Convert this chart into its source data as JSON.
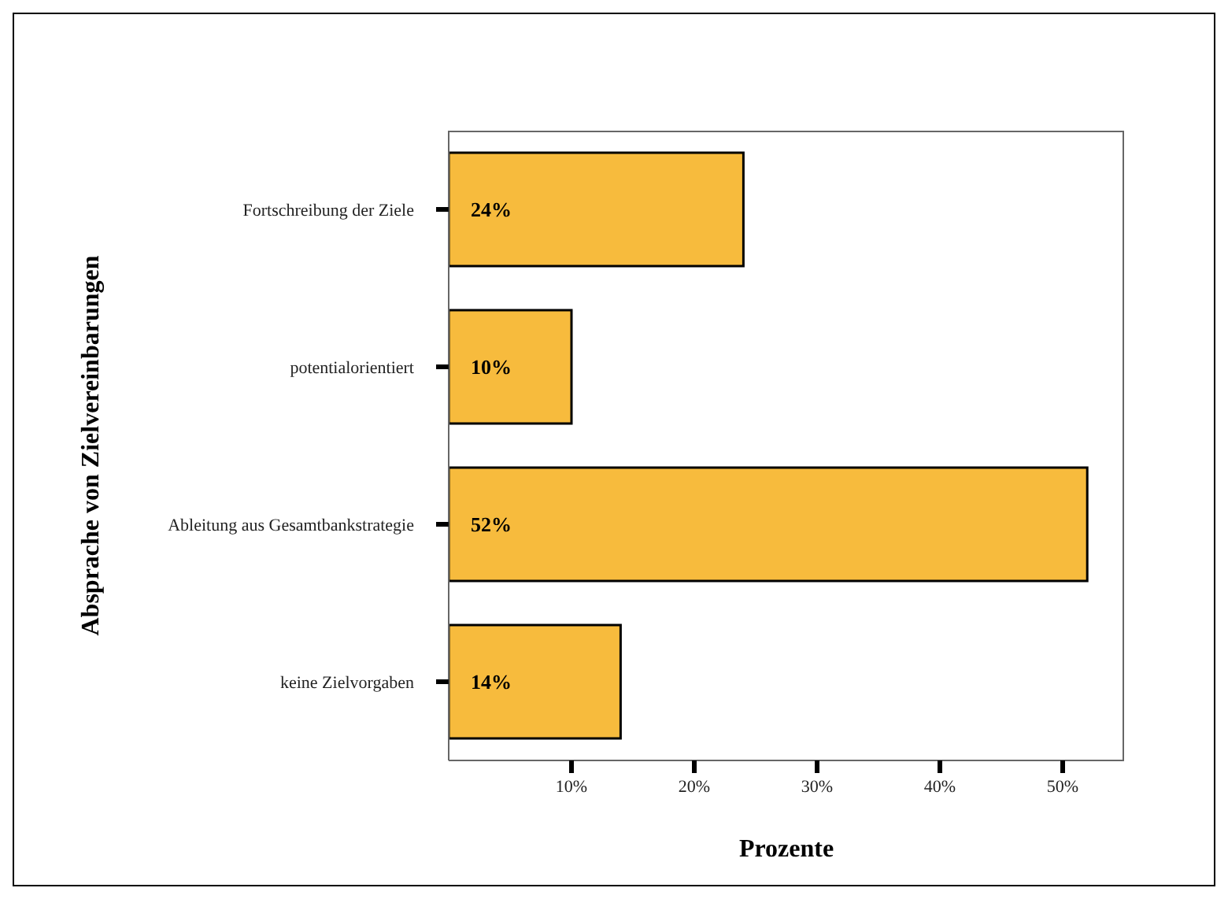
{
  "chart_data": {
    "type": "bar",
    "orientation": "horizontal",
    "xlabel": "Prozente",
    "ylabel": "Absprache von Zielvereinbarungen",
    "categories": [
      "Fortschreibung der Ziele",
      "potentialorientiert",
      "Ableitung aus Gesamtbankstrategie",
      "keine Zielvorgaben"
    ],
    "values": [
      24,
      10,
      52,
      14
    ],
    "value_labels": [
      "24%",
      "10%",
      "52%",
      "14%"
    ],
    "color": "#f7bb3d",
    "xlim": [
      0,
      55
    ],
    "xticks": [
      {
        "value": 10,
        "label": "10%"
      },
      {
        "value": 20,
        "label": "20%"
      },
      {
        "value": 30,
        "label": "30%"
      },
      {
        "value": 40,
        "label": "40%"
      },
      {
        "value": 50,
        "label": "50%"
      }
    ],
    "grid": false,
    "legend": false
  }
}
